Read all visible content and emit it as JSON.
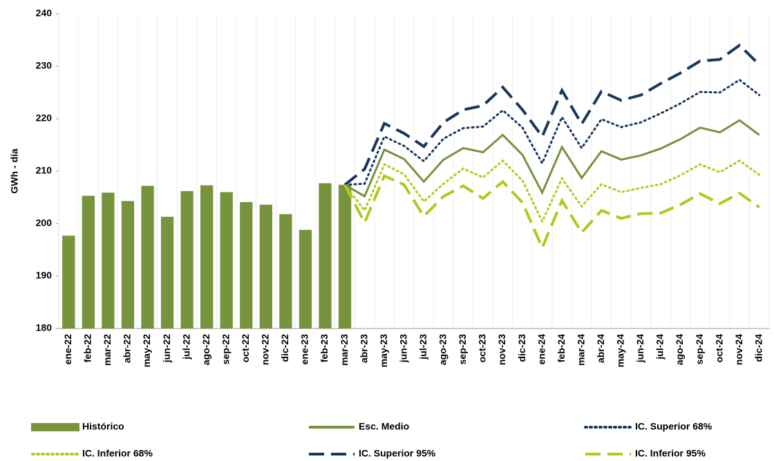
{
  "chart_data": {
    "type": "combo",
    "y_axis_label": "GWh - día",
    "categories": [
      "ene-22",
      "feb-22",
      "mar-22",
      "abr-22",
      "may-22",
      "jun-22",
      "jul-22",
      "ago-22",
      "sep-22",
      "oct-22",
      "nov-22",
      "dic-22",
      "ene-23",
      "feb-23",
      "mar-23",
      "abr-23",
      "may-23",
      "jun-23",
      "jul-23",
      "ago-23",
      "sep-23",
      "oct-23",
      "nov-23",
      "dic-23",
      "ene-24",
      "feb-24",
      "mar-24",
      "abr-24",
      "may-24",
      "jun-24",
      "jul-24",
      "ago-24",
      "sep-24",
      "oct-24",
      "nov-24",
      "dic-24"
    ],
    "ylim": [
      180,
      240
    ],
    "yticks": [
      180,
      190,
      200,
      210,
      220,
      230,
      240
    ],
    "series": [
      {
        "name": "Histórico",
        "type": "bar",
        "color": "#77933c",
        "values": [
          197.7,
          205.3,
          205.9,
          204.3,
          207.2,
          201.3,
          206.2,
          207.3,
          206.0,
          204.1,
          203.6,
          201.8,
          198.8,
          207.7,
          207.4,
          null,
          null,
          null,
          null,
          null,
          null,
          null,
          null,
          null,
          null,
          null,
          null,
          null,
          null,
          null,
          null,
          null,
          null,
          null,
          null,
          null
        ]
      },
      {
        "name": "Esc. Medio",
        "type": "line",
        "dash": "solid",
        "color": "#77933c",
        "values": [
          null,
          null,
          null,
          null,
          null,
          null,
          null,
          null,
          null,
          null,
          null,
          null,
          null,
          null,
          207.4,
          205.2,
          214.1,
          212.3,
          208.0,
          212.2,
          214.4,
          213.6,
          216.9,
          213.1,
          205.9,
          214.6,
          208.7,
          213.8,
          212.2,
          213.0,
          214.3,
          216.1,
          218.3,
          217.4,
          219.7,
          216.9
        ]
      },
      {
        "name": "IC. Superior 68%",
        "type": "line",
        "dash": "dotted",
        "color": "#17375e",
        "values": [
          null,
          null,
          null,
          null,
          null,
          null,
          null,
          null,
          null,
          null,
          null,
          null,
          null,
          null,
          207.4,
          207.6,
          216.6,
          214.8,
          211.9,
          216.2,
          218.2,
          218.5,
          221.6,
          218.3,
          211.5,
          220.3,
          214.4,
          219.9,
          218.4,
          219.3,
          221.0,
          222.9,
          225.1,
          225.0,
          227.4,
          224.5
        ]
      },
      {
        "name": "IC. Inferior 68%",
        "type": "line",
        "dash": "dotted",
        "color": "#b5c918",
        "values": [
          null,
          null,
          null,
          null,
          null,
          null,
          null,
          null,
          null,
          null,
          null,
          null,
          null,
          null,
          207.4,
          202.5,
          211.3,
          209.4,
          204.2,
          207.6,
          210.5,
          208.8,
          212.0,
          208.2,
          200.4,
          208.6,
          203.3,
          207.5,
          206.0,
          206.8,
          207.5,
          209.2,
          211.3,
          209.8,
          212.0,
          209.3
        ]
      },
      {
        "name": "IC. Superior 95%",
        "type": "line",
        "dash": "dashed",
        "color": "#17375e",
        "values": [
          null,
          null,
          null,
          null,
          null,
          null,
          null,
          null,
          null,
          null,
          null,
          null,
          null,
          null,
          207.4,
          210.4,
          219.1,
          217.2,
          214.7,
          219.3,
          221.7,
          222.5,
          226.0,
          221.7,
          216.6,
          225.4,
          219.0,
          225.2,
          223.5,
          224.5,
          226.7,
          228.7,
          231.0,
          231.3,
          234.0,
          230.3
        ]
      },
      {
        "name": "IC. Inferior 95%",
        "type": "line",
        "dash": "dashed",
        "color": "#b3c71c",
        "values": [
          null,
          null,
          null,
          null,
          null,
          null,
          null,
          null,
          null,
          null,
          null,
          null,
          null,
          null,
          207.4,
          200.2,
          209.1,
          207.4,
          201.4,
          205.2,
          207.2,
          204.8,
          208.0,
          204.0,
          195.4,
          204.4,
          198.3,
          202.5,
          201.0,
          201.9,
          202.0,
          203.6,
          205.7,
          203.8,
          205.8,
          203.1
        ]
      }
    ]
  }
}
